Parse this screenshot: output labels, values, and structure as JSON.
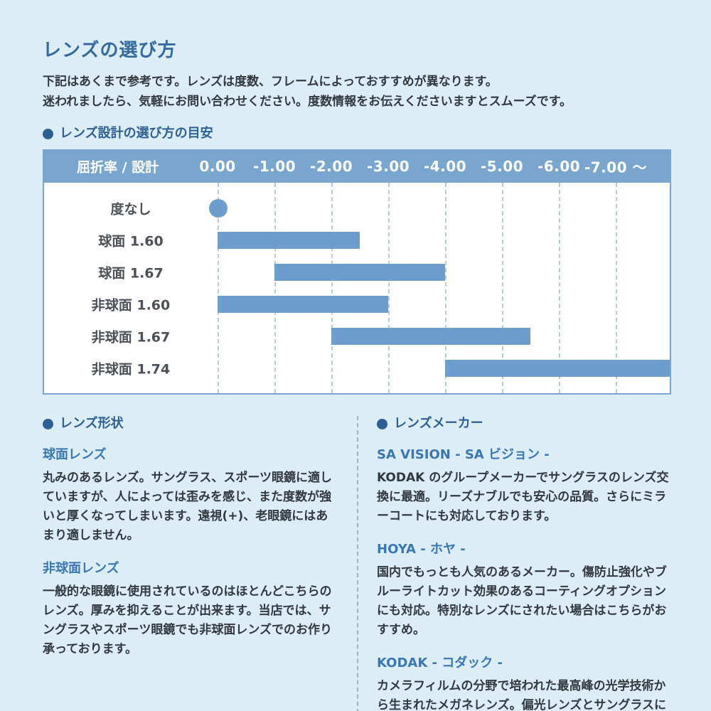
{
  "page": {
    "title": "レンズの選び方",
    "intro_lines": [
      "下記はあくまで参考です。レンズは度数、フレームによっておすすめが異なります。",
      "迷われましたら、気軽にお問い合わせください。度数情報をお伝えくださいますとスムーズです。"
    ]
  },
  "chart_section": {
    "heading": "レンズ設計の選び方の目安"
  },
  "chart_data": {
    "type": "bar",
    "subtype": "horizontal-range",
    "title": "レンズ設計の選び方の目安",
    "axis_header": "屈折率 / 設計",
    "tick_labels": [
      "0.00",
      "-1.00",
      "-2.00",
      "-3.00",
      "-4.00",
      "-5.00",
      "-6.00",
      "-7.00 ～"
    ],
    "tick_values": [
      0,
      -1,
      -2,
      -3,
      -4,
      -5,
      -6,
      -7
    ],
    "grid": "dashed-vertical",
    "legend": null,
    "rows": [
      {
        "label": "度なし",
        "mark": "dot",
        "start": 0,
        "end": 0
      },
      {
        "label": "球面 1.60",
        "mark": "bar",
        "start": 0,
        "end": -2.5
      },
      {
        "label": "球面 1.67",
        "mark": "bar",
        "start": -1,
        "end": -4
      },
      {
        "label": "非球面 1.60",
        "mark": "bar",
        "start": 0,
        "end": -3
      },
      {
        "label": "非球面 1.67",
        "mark": "bar",
        "start": -2,
        "end": -5.5
      },
      {
        "label": "非球面 1.74",
        "mark": "bar",
        "start": -4,
        "end": -8,
        "extends_to_edge": true
      }
    ]
  },
  "shape_section": {
    "heading": "レンズ形状",
    "items": [
      {
        "title": "球面レンズ",
        "body": "丸みのあるレンズ。サングラス、スポーツ眼鏡に適していますが、人によっては歪みを感じ、また度数が強いと厚くなってしまいます。遠視(+)、老眼鏡にはあまり適しません。"
      },
      {
        "title": "非球面レンズ",
        "body": "一般的な眼鏡に使用されているのはほとんどこちらのレンズ。厚みを抑えることが出来ます。当店では、サングラスやスポーツ眼鏡でも非球面レンズでのお作り承っております。"
      }
    ]
  },
  "maker_section": {
    "heading": "レンズメーカー",
    "items": [
      {
        "title": "SA VISION - SA ビジョン -",
        "body": "KODAK のグループメーカーでサングラスのレンズ交換に最適。リーズナブルでも安心の品質。さらにミラーコートにも対応しております。"
      },
      {
        "title": "HOYA - ホヤ -",
        "body": "国内でもっとも人気のあるメーカー。傷防止強化やブルーライトカット効果のあるコーティングオプションにも対応。特別なレンズにされたい場合はこちらがおすすめ。"
      },
      {
        "title": "KODAK - コダック -",
        "body": "カメラフィルムの分野で培われた最高峰の光学技術から生まれたメガネレンズ。偏光レンズとサングラスに適したレンズを取り扱っています。"
      }
    ]
  },
  "colors": {
    "page_background": "#dcedf8",
    "title_text": "#35699f",
    "section_heading": "#2e5f94",
    "sub_heading": "#3a76b4",
    "body_text": "#33383e",
    "chart_header_bg": "#7aa5cf",
    "chart_header_text": "#ffffff",
    "bar_fill": "#6d9dcd",
    "row_label_text": "#4b5056",
    "gridline": "#b2cbe2",
    "chart_bg": "#ffffff",
    "divider": "#a3b1bd"
  }
}
